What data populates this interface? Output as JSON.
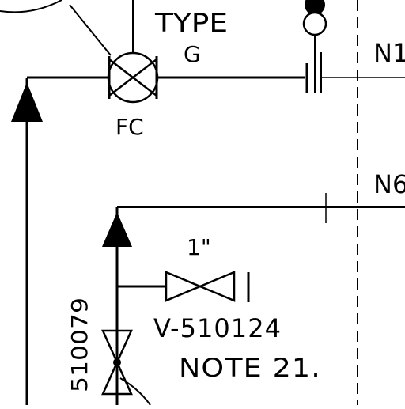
{
  "labels": {
    "type": "TYPE",
    "type_letter": "G",
    "fail_mode": "FC",
    "line_n1": "N1",
    "line_n6": "N6",
    "valve_size": "1\"",
    "valve_tag": "V-510124",
    "note": "NOTE 21.",
    "vertical_tag": "510079"
  }
}
